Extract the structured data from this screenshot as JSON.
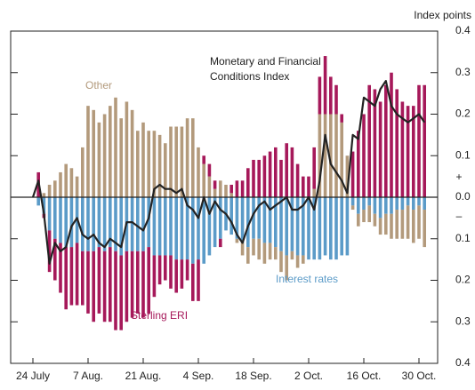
{
  "chart_data": {
    "type": "bar",
    "y_label": "Index points",
    "sign_positive": "+",
    "sign_negative": "–",
    "categories": [
      "24 July",
      null,
      null,
      null,
      null,
      null,
      null,
      null,
      null,
      null,
      "7 Aug.",
      null,
      null,
      null,
      null,
      null,
      null,
      null,
      null,
      null,
      "21 Aug.",
      null,
      null,
      null,
      null,
      null,
      null,
      null,
      null,
      null,
      "4 Sep.",
      null,
      null,
      null,
      null,
      null,
      null,
      null,
      null,
      null,
      "18 Sep.",
      null,
      null,
      null,
      null,
      null,
      null,
      null,
      null,
      null,
      "2 Oct.",
      null,
      null,
      null,
      null,
      null,
      null,
      null,
      null,
      null,
      "16 Oct.",
      null,
      null,
      null,
      null,
      null,
      null,
      null,
      null,
      null,
      "30 Oct.",
      null
    ],
    "ylim": [
      -0.4,
      0.4
    ],
    "yticks": [
      0.4,
      0.3,
      0.2,
      0.1,
      {
        "value": 0,
        "label": "0.0"
      },
      {
        "value": -0.1,
        "label": "0.1"
      },
      {
        "value": -0.2,
        "label": "0.2"
      },
      {
        "value": -0.3,
        "label": "0.3"
      },
      {
        "value": -0.4,
        "label": "0.4"
      }
    ],
    "series": [
      {
        "name": "Interest rates",
        "kind": "bar",
        "color": "#5b9bc8",
        "values": [
          0,
          -0.02,
          -0.04,
          -0.08,
          -0.1,
          -0.11,
          -0.12,
          -0.12,
          -0.11,
          -0.13,
          -0.13,
          -0.13,
          -0.12,
          -0.13,
          -0.12,
          -0.13,
          -0.14,
          -0.13,
          -0.13,
          -0.13,
          -0.13,
          -0.12,
          -0.14,
          -0.14,
          -0.14,
          -0.14,
          -0.15,
          -0.15,
          -0.15,
          -0.16,
          -0.15,
          -0.16,
          -0.14,
          -0.12,
          -0.1,
          -0.08,
          -0.09,
          -0.1,
          -0.11,
          -0.12,
          -0.1,
          -0.1,
          -0.11,
          -0.11,
          -0.12,
          -0.13,
          -0.14,
          -0.13,
          -0.14,
          -0.14,
          -0.15,
          -0.15,
          -0.15,
          -0.14,
          -0.15,
          -0.15,
          -0.14,
          -0.14,
          -0.02,
          -0.04,
          -0.03,
          -0.02,
          -0.04,
          -0.05,
          -0.04,
          -0.04,
          -0.03,
          -0.03,
          -0.02,
          -0.03,
          -0.02,
          -0.03
        ]
      },
      {
        "name": "Other",
        "kind": "bar",
        "color": "#b39a7c",
        "values": [
          0,
          0,
          0.01,
          0.03,
          0.04,
          0.06,
          0.08,
          0.07,
          0.05,
          0.12,
          0.22,
          0.21,
          0.18,
          0.2,
          0.22,
          0.24,
          0.19,
          0.23,
          0.21,
          0.16,
          0.18,
          0.16,
          0.16,
          0.15,
          0.13,
          0.17,
          0.17,
          0.17,
          0.19,
          0.19,
          0.12,
          0.08,
          0.05,
          0.02,
          0.04,
          0.03,
          0.01,
          -0.01,
          -0.03,
          -0.04,
          -0.04,
          -0.05,
          -0.05,
          -0.04,
          -0.03,
          -0.05,
          -0.06,
          -0.02,
          -0.03,
          -0.02,
          0,
          0.02,
          0.2,
          0.2,
          0.2,
          0.2,
          0.18,
          0.1,
          -0.01,
          -0.03,
          -0.03,
          -0.04,
          -0.03,
          -0.04,
          -0.05,
          -0.06,
          -0.07,
          -0.07,
          -0.08,
          -0.08,
          -0.08,
          -0.09
        ]
      },
      {
        "name": "Sterling ERI",
        "kind": "bar",
        "color": "#a6195a",
        "values": [
          0,
          0.06,
          -0.01,
          -0.1,
          -0.1,
          -0.12,
          -0.15,
          -0.14,
          -0.15,
          -0.13,
          -0.15,
          -0.17,
          -0.16,
          -0.17,
          -0.18,
          -0.19,
          -0.18,
          -0.17,
          -0.16,
          -0.15,
          -0.16,
          -0.16,
          -0.1,
          -0.07,
          -0.06,
          -0.08,
          -0.08,
          -0.07,
          -0.05,
          -0.09,
          -0.1,
          0.02,
          0.03,
          0.02,
          -0.02,
          0,
          0.02,
          0.04,
          0.04,
          0.07,
          0.09,
          0.09,
          0.1,
          0.11,
          0.12,
          0.09,
          0.13,
          0.12,
          0.08,
          0.05,
          0.05,
          0.1,
          0.09,
          0.14,
          0.09,
          0.07,
          0.02,
          0,
          0.11,
          0.16,
          0.2,
          0.27,
          0.26,
          0.23,
          0.27,
          0.3,
          0.26,
          0.23,
          0.22,
          0.22,
          0.27,
          0.27
        ]
      },
      {
        "name": "Monetary and Financial Conditions Index",
        "kind": "line",
        "color": "#222222",
        "values": [
          0,
          0.04,
          -0.04,
          -0.16,
          -0.11,
          -0.13,
          -0.12,
          -0.07,
          -0.05,
          -0.09,
          -0.1,
          -0.09,
          -0.11,
          -0.12,
          -0.1,
          -0.11,
          -0.12,
          -0.06,
          -0.06,
          -0.07,
          -0.08,
          -0.05,
          0.02,
          0.03,
          0.02,
          0.02,
          0.01,
          0.02,
          -0.02,
          -0.03,
          -0.05,
          0,
          -0.04,
          -0.01,
          -0.03,
          -0.04,
          -0.06,
          -0.09,
          -0.11,
          -0.07,
          -0.04,
          -0.02,
          -0.01,
          -0.03,
          -0.02,
          -0.01,
          0,
          -0.03,
          -0.03,
          -0.02,
          0,
          -0.03,
          0.04,
          0.15,
          0.08,
          0.06,
          0.04,
          0.01,
          0.15,
          0.14,
          0.24,
          0.23,
          0.22,
          0.26,
          0.28,
          0.22,
          0.2,
          0.19,
          0.18,
          0.19,
          0.2,
          0.18
        ]
      }
    ]
  }
}
